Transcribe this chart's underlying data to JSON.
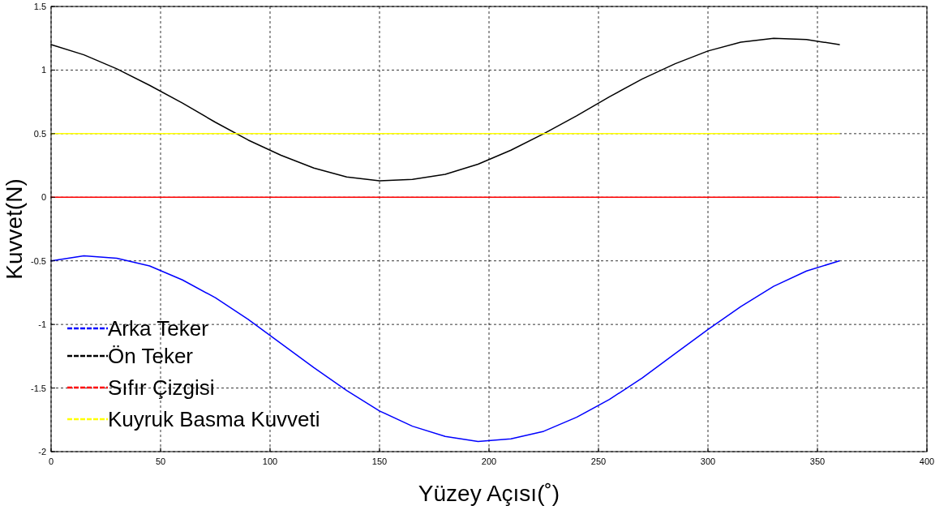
{
  "chart_data": {
    "type": "line",
    "xlabel": "Yüzey Açısı(˚)",
    "ylabel": "Kuvvet(N)",
    "x": [
      0,
      15,
      30,
      45,
      60,
      75,
      90,
      105,
      120,
      135,
      150,
      165,
      180,
      195,
      210,
      225,
      240,
      255,
      270,
      285,
      300,
      315,
      330,
      345,
      360
    ],
    "xlim": [
      0,
      400
    ],
    "xticks": [
      0,
      50,
      100,
      150,
      200,
      250,
      300,
      350,
      400
    ],
    "ylim": [
      -2,
      1.5
    ],
    "yticks": [
      -2,
      -1.5,
      -1,
      -0.5,
      0,
      0.5,
      1,
      1.5
    ],
    "grid": true,
    "legend": "bottom left",
    "marker": "none",
    "line_style": "solid",
    "series": [
      {
        "name": "Arka Teker",
        "color": "#0000ff",
        "values": [
          -0.5,
          -0.46,
          -0.48,
          -0.54,
          -0.65,
          -0.79,
          -0.96,
          -1.15,
          -1.34,
          -1.52,
          -1.68,
          -1.8,
          -1.88,
          -1.92,
          -1.9,
          -1.84,
          -1.73,
          -1.59,
          -1.42,
          -1.23,
          -1.04,
          -0.86,
          -0.7,
          -0.58,
          -0.5
        ]
      },
      {
        "name": "Ön Teker",
        "color": "#000000",
        "values": [
          1.2,
          1.12,
          1.01,
          0.88,
          0.74,
          0.59,
          0.45,
          0.33,
          0.23,
          0.16,
          0.13,
          0.14,
          0.18,
          0.26,
          0.37,
          0.5,
          0.64,
          0.79,
          0.93,
          1.05,
          1.15,
          1.22,
          1.25,
          1.24,
          1.2
        ]
      },
      {
        "name": "Sıfır Çizgisi",
        "color": "#ff0000",
        "values": [
          0,
          0,
          0,
          0,
          0,
          0,
          0,
          0,
          0,
          0,
          0,
          0,
          0,
          0,
          0,
          0,
          0,
          0,
          0,
          0,
          0,
          0,
          0,
          0,
          0
        ]
      },
      {
        "name": "Kuyruk Basma Kuvveti",
        "color": "#ffff00",
        "values": [
          0.5,
          0.5,
          0.5,
          0.5,
          0.5,
          0.5,
          0.5,
          0.5,
          0.5,
          0.5,
          0.5,
          0.5,
          0.5,
          0.5,
          0.5,
          0.5,
          0.5,
          0.5,
          0.5,
          0.5,
          0.5,
          0.5,
          0.5,
          0.5,
          0.5
        ]
      }
    ]
  }
}
